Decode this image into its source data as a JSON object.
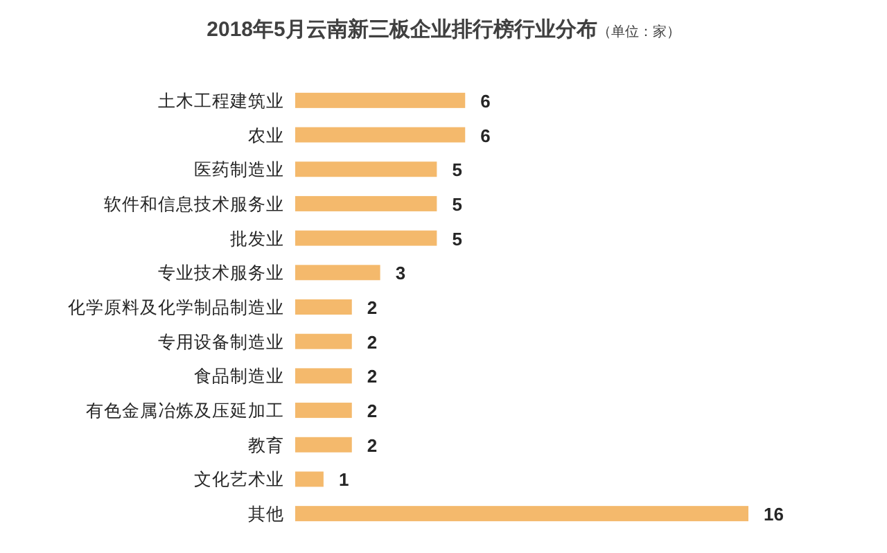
{
  "chart_data": {
    "type": "bar",
    "orientation": "horizontal",
    "title": "2018年5月云南新三板企业排行榜行业分布",
    "subtitle": "（单位：家）",
    "categories": [
      "土木工程建筑业",
      "农业",
      "医药制造业",
      "软件和信息技术服务业",
      "批发业",
      "专业技术服务业",
      "化学原料及化学制品制造业",
      "专用设备制造业",
      "食品制造业",
      "有色金属冶炼及压延加工",
      "教育",
      "文化艺术业",
      "其他"
    ],
    "values": [
      6,
      6,
      5,
      5,
      5,
      3,
      2,
      2,
      2,
      2,
      2,
      1,
      16
    ],
    "color": "#f4b96c",
    "data_labels": true
  }
}
